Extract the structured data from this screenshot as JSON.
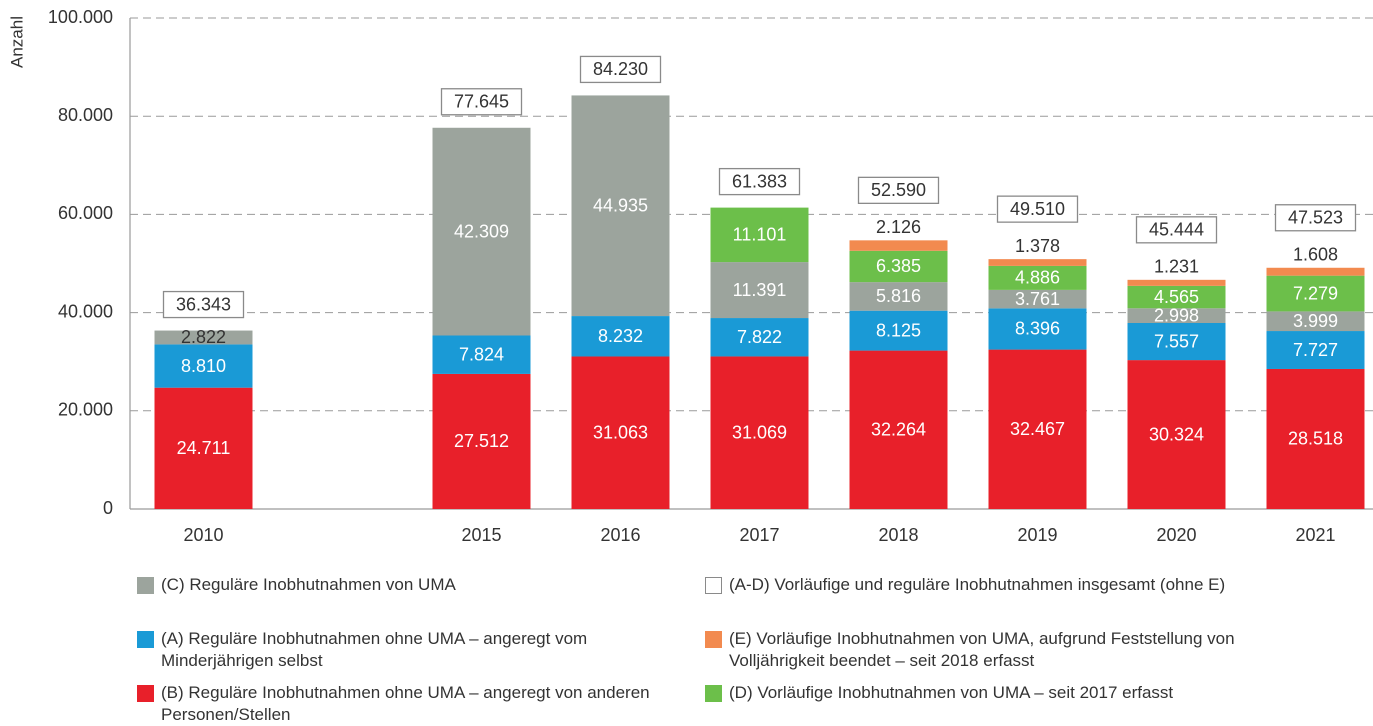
{
  "chart_data": {
    "type": "stacked_bar",
    "y_label": "Anzahl",
    "categories": [
      "2010",
      null,
      "2015",
      "2016",
      "2017",
      "2018",
      "2019",
      "2020",
      "2021"
    ],
    "ylim": [
      0,
      100000
    ],
    "yticks": [
      0,
      {
        "value": 20000,
        "label": "20.000"
      },
      {
        "value": 40000,
        "label": "40.000"
      },
      {
        "value": 60000,
        "label": "60.000"
      },
      {
        "value": 80000,
        "label": "80.000"
      },
      {
        "value": 100000,
        "label": "100.000"
      }
    ],
    "grid": true,
    "series": [
      {
        "name": "(B) Reguläre Inobhutnahmen ohne UMA – angeregt von anderen Personen/Stellen",
        "color": "#e8202a",
        "values": [
          24711,
          null,
          27512,
          31063,
          31069,
          32264,
          32467,
          30324,
          28518
        ],
        "value_labels": [
          "24.711",
          null,
          "27.512",
          "31.063",
          "31.069",
          "32.264",
          "32.467",
          "30.324",
          "28.518"
        ]
      },
      {
        "name": "(A) Reguläre Inobhutnahmen ohne UMA – angeregt vom Minderjährigen selbst",
        "color": "#1a9ad6",
        "values": [
          8810,
          null,
          7824,
          8232,
          7822,
          8125,
          8396,
          7557,
          7727
        ],
        "value_labels": [
          "8.810",
          null,
          "7.824",
          "8.232",
          "7.822",
          "8.125",
          "8.396",
          "7.557",
          "7.727"
        ]
      },
      {
        "name": "(C) Reguläre Inobhutnahmen von UMA",
        "color": "#9ca49d",
        "values": [
          2822,
          null,
          42309,
          44935,
          11391,
          5816,
          3761,
          2998,
          3999
        ],
        "value_labels": [
          "2.822",
          null,
          "42.309",
          "44.935",
          "11.391",
          "5.816",
          "3.761",
          "2.998",
          "3.999"
        ]
      },
      {
        "name": "(D) Vorläufige Inobhutnahmen von UMA – seit 2017 erfasst",
        "color": "#6cbf4a",
        "values": [
          null,
          null,
          null,
          null,
          11101,
          6385,
          4886,
          4565,
          7279
        ],
        "value_labels": [
          null,
          null,
          null,
          null,
          "11.101",
          "6.385",
          "4.886",
          "4.565",
          "7.279"
        ]
      },
      {
        "name": "(E) Vorläufige Inobhutnahmen von UMA, aufgrund Feststellung von Volljährigkeit beendet – seit 2018 erfasst",
        "color": "#f28a4f",
        "values": [
          null,
          null,
          null,
          null,
          null,
          2126,
          1378,
          1231,
          1608
        ],
        "value_labels": [
          null,
          null,
          null,
          null,
          null,
          "2.126",
          "1.378",
          "1.231",
          "1.608"
        ]
      }
    ],
    "totals": {
      "name": "(A-D) Vorläufige und reguläre Inobhutnahmen insgesamt (ohne E)",
      "values": [
        36343,
        null,
        77645,
        84230,
        61383,
        52590,
        49510,
        45444,
        47523
      ],
      "value_labels": [
        "36.343",
        null,
        "77.645",
        "84.230",
        "61.383",
        "52.590",
        "49.510",
        "45.444",
        "47.523"
      ]
    }
  }
}
